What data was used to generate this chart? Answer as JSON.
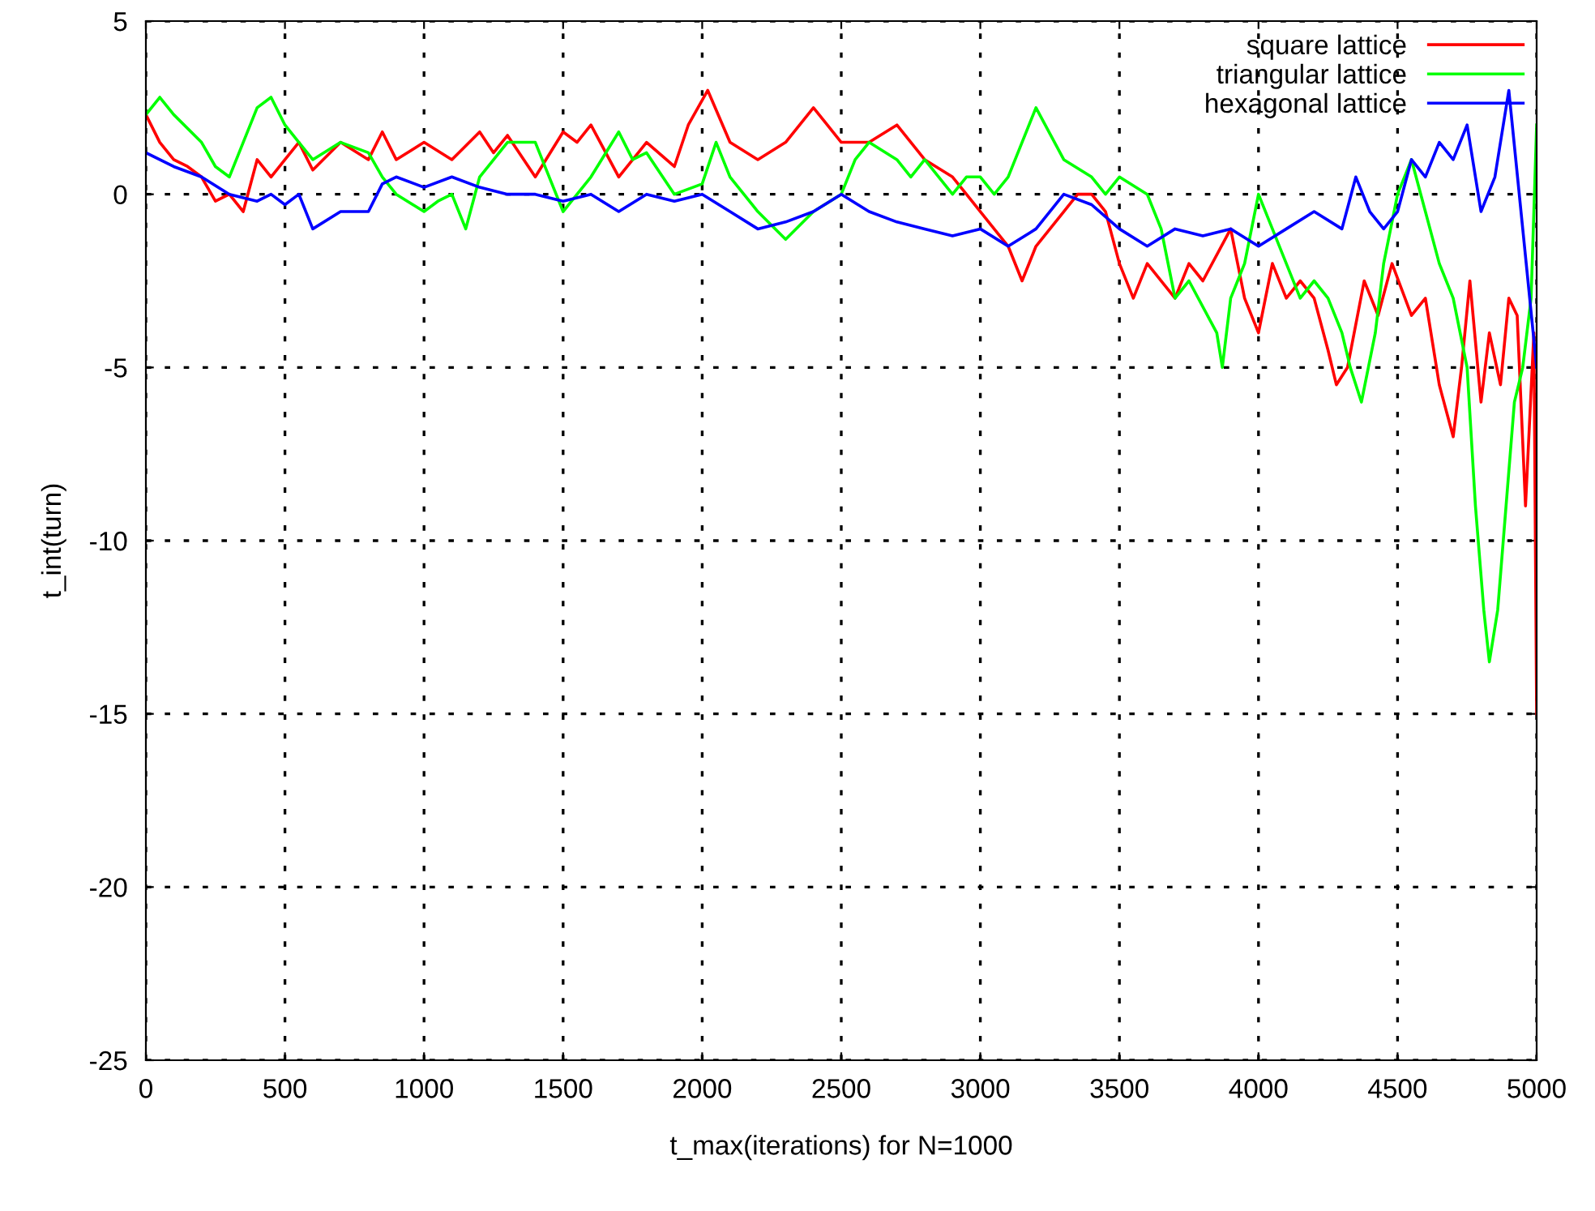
{
  "chart_data": {
    "type": "line",
    "xlabel": "t_max(iterations) for N=1000",
    "ylabel": "t_int(turn)",
    "xlim": [
      0,
      5000
    ],
    "ylim": [
      -25,
      5
    ],
    "xticks": [
      0,
      500,
      1000,
      1500,
      2000,
      2500,
      3000,
      3500,
      4000,
      4500,
      5000
    ],
    "yticks": [
      -25,
      -20,
      -15,
      -10,
      -5,
      0,
      5
    ],
    "grid": true,
    "legend": "top right",
    "line_style": "solid",
    "marker": "none",
    "series": [
      {
        "name": "square lattice",
        "color": "#ff0000",
        "x": [
          0,
          50,
          100,
          150,
          200,
          250,
          300,
          350,
          400,
          450,
          500,
          550,
          600,
          700,
          800,
          850,
          900,
          1000,
          1100,
          1200,
          1250,
          1300,
          1400,
          1500,
          1550,
          1600,
          1700,
          1800,
          1900,
          1950,
          2020,
          2100,
          2200,
          2300,
          2400,
          2500,
          2600,
          2700,
          2800,
          2900,
          2950,
          3000,
          3100,
          3150,
          3200,
          3300,
          3350,
          3400,
          3450,
          3500,
          3550,
          3600,
          3700,
          3750,
          3800,
          3900,
          3950,
          4000,
          4050,
          4100,
          4150,
          4200,
          4250,
          4280,
          4320,
          4380,
          4430,
          4480,
          4550,
          4600,
          4650,
          4700,
          4730,
          4760,
          4800,
          4830,
          4870,
          4900,
          4930,
          4960,
          4990,
          5000
        ],
        "values": [
          2.3,
          1.5,
          1.0,
          0.8,
          0.5,
          -0.2,
          0.0,
          -0.5,
          1.0,
          0.5,
          1.0,
          1.5,
          0.7,
          1.5,
          1.0,
          1.8,
          1.0,
          1.5,
          1.0,
          1.8,
          1.2,
          1.7,
          0.5,
          1.8,
          1.5,
          2.0,
          0.5,
          1.5,
          0.8,
          2.0,
          3.0,
          1.5,
          1.0,
          1.5,
          2.5,
          1.5,
          1.5,
          2.0,
          1.0,
          0.5,
          0.0,
          -0.5,
          -1.5,
          -2.5,
          -1.5,
          -0.5,
          0.0,
          0.0,
          -0.5,
          -2.0,
          -3.0,
          -2.0,
          -3.0,
          -2.0,
          -2.5,
          -1.0,
          -3.0,
          -4.0,
          -2.0,
          -3.0,
          -2.5,
          -3.0,
          -4.5,
          -5.5,
          -5.0,
          -2.5,
          -3.5,
          -2.0,
          -3.5,
          -3.0,
          -5.5,
          -7.0,
          -5.0,
          -2.5,
          -6.0,
          -4.0,
          -5.5,
          -3.0,
          -3.5,
          -9.0,
          -4.0,
          -15.0
        ]
      },
      {
        "name": "triangular lattice",
        "color": "#00ff00",
        "x": [
          0,
          50,
          100,
          200,
          250,
          300,
          350,
          400,
          450,
          500,
          550,
          600,
          700,
          800,
          850,
          900,
          1000,
          1050,
          1100,
          1150,
          1200,
          1300,
          1400,
          1450,
          1500,
          1600,
          1700,
          1750,
          1800,
          1900,
          2000,
          2050,
          2100,
          2200,
          2300,
          2400,
          2500,
          2550,
          2600,
          2700,
          2750,
          2800,
          2900,
          2950,
          3000,
          3050,
          3100,
          3150,
          3200,
          3300,
          3400,
          3450,
          3500,
          3600,
          3650,
          3700,
          3750,
          3850,
          3870,
          3900,
          3950,
          4000,
          4050,
          4100,
          4150,
          4200,
          4250,
          4300,
          4330,
          4370,
          4420,
          4450,
          4500,
          4550,
          4600,
          4650,
          4700,
          4750,
          4780,
          4810,
          4830,
          4860,
          4890,
          4920,
          4950,
          4980,
          5000
        ],
        "values": [
          2.3,
          2.8,
          2.3,
          1.5,
          0.8,
          0.5,
          1.5,
          2.5,
          2.8,
          2.0,
          1.5,
          1.0,
          1.5,
          1.2,
          0.5,
          0.0,
          -0.5,
          -0.2,
          0.0,
          -1.0,
          0.5,
          1.5,
          1.5,
          0.5,
          -0.5,
          0.5,
          1.8,
          1.0,
          1.2,
          0.0,
          0.3,
          1.5,
          0.5,
          -0.5,
          -1.3,
          -0.5,
          0.0,
          1.0,
          1.5,
          1.0,
          0.5,
          1.0,
          0.0,
          0.5,
          0.5,
          0.0,
          0.5,
          1.5,
          2.5,
          1.0,
          0.5,
          0.0,
          0.5,
          0.0,
          -1.0,
          -3.0,
          -2.5,
          -4.0,
          -5.0,
          -3.0,
          -2.0,
          0.0,
          -1.0,
          -2.0,
          -3.0,
          -2.5,
          -3.0,
          -4.0,
          -5.0,
          -6.0,
          -4.0,
          -2.0,
          0.0,
          1.0,
          -0.5,
          -2.0,
          -3.0,
          -5.0,
          -9.0,
          -12.0,
          -13.5,
          -12.0,
          -9.0,
          -6.0,
          -5.0,
          -3.0,
          2.0
        ]
      },
      {
        "name": "hexagonal lattice",
        "color": "#0000ff",
        "x": [
          0,
          100,
          200,
          300,
          400,
          450,
          500,
          550,
          600,
          700,
          800,
          850,
          900,
          1000,
          1100,
          1200,
          1300,
          1400,
          1500,
          1600,
          1700,
          1800,
          1900,
          2000,
          2100,
          2200,
          2300,
          2400,
          2500,
          2600,
          2700,
          2800,
          2900,
          3000,
          3100,
          3200,
          3300,
          3400,
          3500,
          3600,
          3700,
          3800,
          3900,
          4000,
          4100,
          4200,
          4300,
          4350,
          4400,
          4450,
          4500,
          4550,
          4600,
          4650,
          4700,
          4750,
          4800,
          4850,
          4900,
          4950,
          5000
        ],
        "values": [
          1.2,
          0.8,
          0.5,
          0.0,
          -0.2,
          0.0,
          -0.3,
          0.0,
          -1.0,
          -0.5,
          -0.5,
          0.3,
          0.5,
          0.2,
          0.5,
          0.2,
          0.0,
          0.0,
          -0.2,
          0.0,
          -0.5,
          0.0,
          -0.2,
          0.0,
          -0.5,
          -1.0,
          -0.8,
          -0.5,
          0.0,
          -0.5,
          -0.8,
          -1.0,
          -1.2,
          -1.0,
          -1.5,
          -1.0,
          0.0,
          -0.3,
          -1.0,
          -1.5,
          -1.0,
          -1.2,
          -1.0,
          -1.5,
          -1.0,
          -0.5,
          -1.0,
          0.5,
          -0.5,
          -1.0,
          -0.5,
          1.0,
          0.5,
          1.5,
          1.0,
          2.0,
          -0.5,
          0.5,
          3.0,
          -1.0,
          -5.0
        ]
      }
    ]
  }
}
